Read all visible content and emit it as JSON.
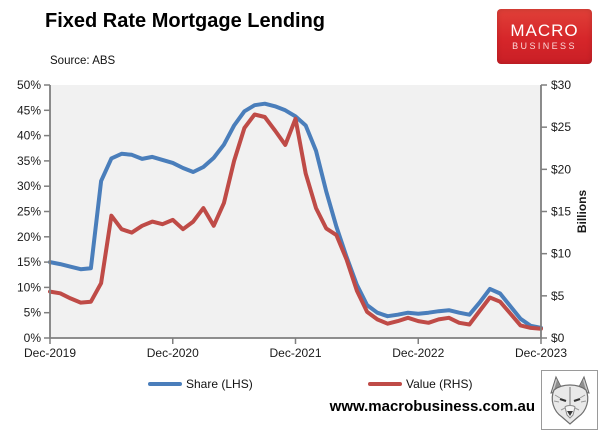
{
  "header": {
    "title": "Fixed Rate Mortgage Lending",
    "source_note": "Source: ABS",
    "logo": {
      "line1": "MACRO",
      "line2": "BUSINESS"
    }
  },
  "footer": {
    "website": "www.macrobusiness.com.au",
    "wolf_logo": "wolf-sketch-stamp"
  },
  "colors": {
    "share_line": "#4a7ebb",
    "value_line": "#bf4b47",
    "plot_bg": "#f1f1f1",
    "axis": "#7f7f7f",
    "text": "#1a1a1a",
    "logo_bg": "#d6262a"
  },
  "chart_data": {
    "type": "line",
    "title": "Fixed Rate Mortgage Lending",
    "frequency": "monthly",
    "x_start": "Dec-2019",
    "x_end": "Dec-2023",
    "x_tick_labels": [
      "Dec-2019",
      "Dec-2020",
      "Dec-2021",
      "Dec-2022",
      "Dec-2023"
    ],
    "x_tick_months": [
      0,
      12,
      24,
      36,
      48
    ],
    "left_axis": {
      "unit": "percent",
      "min": 0,
      "max": 50,
      "tick_labels": [
        "0%",
        "5%",
        "10%",
        "15%",
        "20%",
        "25%",
        "30%",
        "35%",
        "40%",
        "45%",
        "50%"
      ]
    },
    "right_axis": {
      "label": "Billions",
      "unit": "AUD billions",
      "min": 0,
      "max": 30,
      "tick_labels": [
        "$0",
        "$5",
        "$10",
        "$15",
        "$20",
        "$25",
        "$30"
      ]
    },
    "grid": false,
    "legend_position": "bottom",
    "series": [
      {
        "name": "Share (LHS)",
        "axis": "left",
        "color": "#4a7ebb",
        "values": [
          15.0,
          14.6,
          14.1,
          13.6,
          13.8,
          31.0,
          35.5,
          36.4,
          36.2,
          35.4,
          35.8,
          35.2,
          34.6,
          33.6,
          32.8,
          33.8,
          35.6,
          38.2,
          42.0,
          44.8,
          46.0,
          46.3,
          45.8,
          45.0,
          43.8,
          42.0,
          37.0,
          29.0,
          22.0,
          16.0,
          10.5,
          6.5,
          5.0,
          4.3,
          4.6,
          5.0,
          4.8,
          5.0,
          5.3,
          5.5,
          5.0,
          4.6,
          7.0,
          9.7,
          8.8,
          6.3,
          3.8,
          2.4,
          2.0
        ]
      },
      {
        "name": "Value (RHS)",
        "axis": "right",
        "color": "#bf4b47",
        "values": [
          5.5,
          5.3,
          4.7,
          4.2,
          4.3,
          6.5,
          14.5,
          12.9,
          12.5,
          13.3,
          13.8,
          13.5,
          14.0,
          12.9,
          13.8,
          15.4,
          13.3,
          16.0,
          21.0,
          24.9,
          26.5,
          26.2,
          24.6,
          22.9,
          26.0,
          19.5,
          15.4,
          13.0,
          12.2,
          9.3,
          5.6,
          3.1,
          2.2,
          1.7,
          2.0,
          2.4,
          2.0,
          1.8,
          2.2,
          2.4,
          1.8,
          1.6,
          3.2,
          4.8,
          4.3,
          2.9,
          1.5,
          1.2,
          1.1
        ]
      }
    ]
  }
}
